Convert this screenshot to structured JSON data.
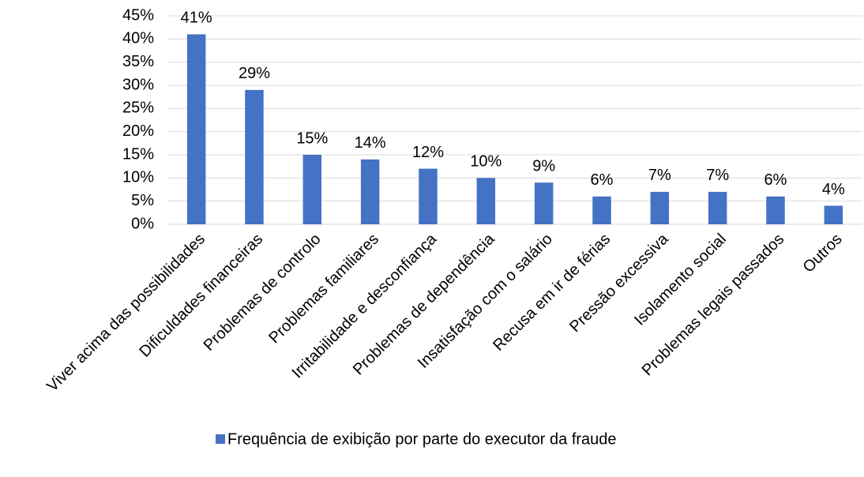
{
  "chart_data": {
    "type": "bar",
    "categories": [
      "Viver acima das possibilidades",
      "Dificuldades financeiras",
      "Problemas de controlo",
      "Problemas familiares",
      "Irritabilidade e desconfiança",
      "Problemas de dependência",
      "Insatisfação com o salário",
      "Recusa em ir de férias",
      "Pressão excessiva",
      "Isolamento social",
      "Problemas legais passados",
      "Outros"
    ],
    "series": [
      {
        "name": "Frequência de exibição por parte do executor da fraude",
        "color": "#4472c4",
        "values": [
          41,
          29,
          15,
          14,
          12,
          10,
          9,
          6,
          7,
          7,
          6,
          4
        ],
        "value_labels": [
          "41%",
          "29%",
          "15%",
          "14%",
          "12%",
          "10%",
          "9%",
          "6%",
          "7%",
          "7%",
          "6%",
          "4%"
        ]
      }
    ],
    "ylim": [
      0,
      45
    ],
    "yticks": [
      {
        "value": 0,
        "label": "0%"
      },
      {
        "value": 5,
        "label": "5%"
      },
      {
        "value": 10,
        "label": "10%"
      },
      {
        "value": 15,
        "label": "15%"
      },
      {
        "value": 20,
        "label": "20%"
      },
      {
        "value": 25,
        "label": "25%"
      },
      {
        "value": 30,
        "label": "30%"
      },
      {
        "value": 35,
        "label": "35%"
      },
      {
        "value": 40,
        "label": "40%"
      },
      {
        "value": 45,
        "label": "45%"
      }
    ],
    "grid": true,
    "legend": "bottom"
  }
}
